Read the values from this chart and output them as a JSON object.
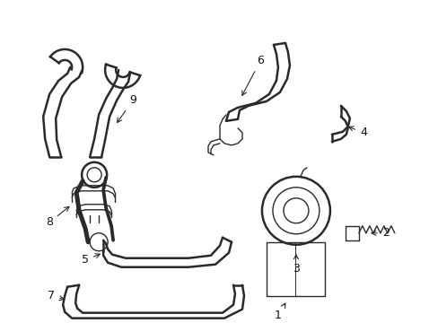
{
  "background_color": "#ffffff",
  "line_color": "#2a2a2a",
  "lw_thick": 1.8,
  "lw_thin": 1.0,
  "label_color": "#111111",
  "label_fontsize": 9,
  "fig_width": 4.89,
  "fig_height": 3.6,
  "dpi": 100
}
